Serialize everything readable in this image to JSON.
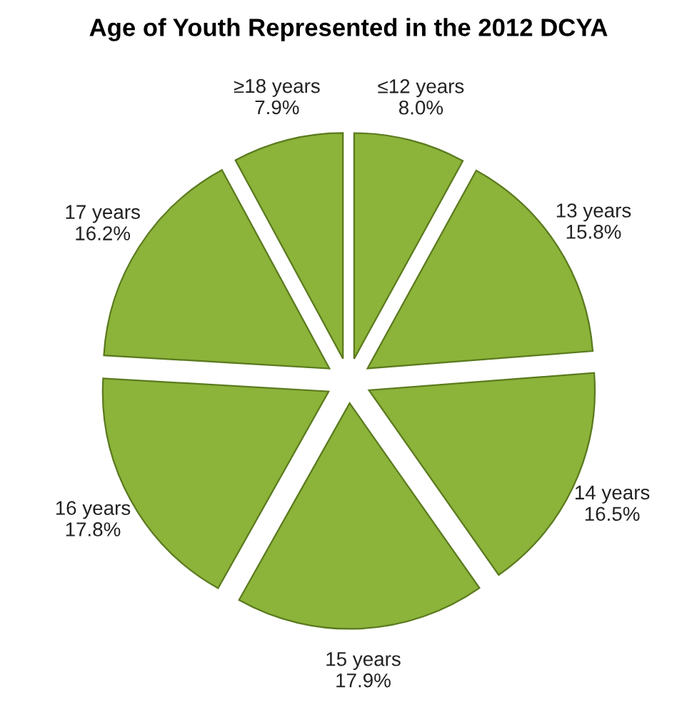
{
  "chart_data": {
    "type": "pie",
    "title": "Age of Youth Represented in the 2012 DCYA",
    "categories": [
      "≤12 years",
      "13 years",
      "14 years",
      "15 years",
      "16 years",
      "17 years",
      "≥18 years"
    ],
    "values": [
      8.0,
      15.8,
      16.5,
      17.9,
      17.8,
      16.2,
      7.9
    ],
    "value_labels": [
      "8.0%",
      "15.8%",
      "16.5%",
      "17.9%",
      "17.8%",
      "16.2%",
      "7.9%"
    ],
    "colors": [
      "#8cb33a",
      "#8cb33a",
      "#8cb33a",
      "#8cb33a",
      "#8cb33a",
      "#8cb33a",
      "#8cb33a"
    ],
    "legend": false
  }
}
